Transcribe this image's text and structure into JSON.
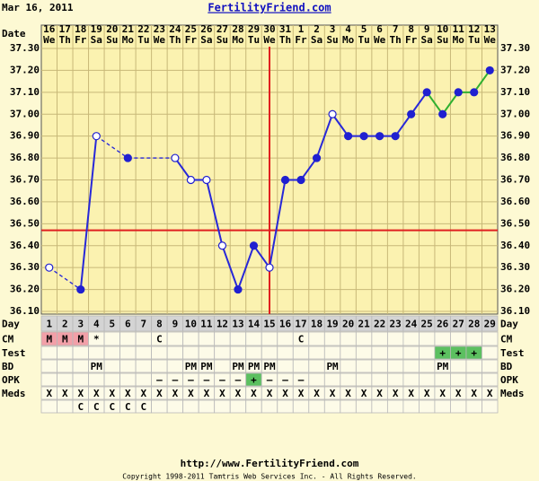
{
  "header": {
    "date": "Mar 16, 2011",
    "site": "FertilityFriend.com"
  },
  "chart_data": {
    "type": "line",
    "date_label": "Date",
    "days": [
      "16",
      "17",
      "18",
      "19",
      "20",
      "21",
      "22",
      "23",
      "24",
      "25",
      "26",
      "27",
      "28",
      "29",
      "30",
      "31",
      "1",
      "2",
      "3",
      "4",
      "5",
      "6",
      "7",
      "8",
      "9",
      "10",
      "11",
      "12",
      "13"
    ],
    "weekdays": [
      "We",
      "Th",
      "Fr",
      "Sa",
      "Su",
      "Mo",
      "Tu",
      "We",
      "Th",
      "Fr",
      "Sa",
      "Su",
      "Mo",
      "Tu",
      "We",
      "Th",
      "Fr",
      "Sa",
      "Su",
      "Mo",
      "Tu",
      "We",
      "Th",
      "Fr",
      "Sa",
      "Su",
      "Mo",
      "Tu",
      "We"
    ],
    "ylim": [
      36.1,
      37.3
    ],
    "yticks": [
      {
        "value": 37.3,
        "label": "37.30"
      },
      {
        "value": 37.2,
        "label": "37.20"
      },
      {
        "value": 37.1,
        "label": "37.10"
      },
      {
        "value": 37.0,
        "label": "37.00"
      },
      {
        "value": 36.9,
        "label": "36.90"
      },
      {
        "value": 36.8,
        "label": "36.80"
      },
      {
        "value": 36.7,
        "label": "36.70"
      },
      {
        "value": 36.6,
        "label": "36.60"
      },
      {
        "value": 36.5,
        "label": "36.50"
      },
      {
        "value": 36.4,
        "label": "36.40"
      },
      {
        "value": 36.3,
        "label": "36.30"
      },
      {
        "value": 36.2,
        "label": "36.20"
      },
      {
        "value": 36.1,
        "label": "36.10"
      }
    ],
    "series": [
      {
        "color": "#2828d8",
        "values": [
          36.3,
          null,
          36.2,
          36.9,
          null,
          36.8,
          null,
          null,
          36.8,
          36.7,
          36.7,
          36.4,
          36.2,
          36.4,
          36.3,
          36.7,
          36.7,
          36.8,
          37.0,
          36.9,
          36.9,
          36.9,
          36.9,
          37.0,
          37.1,
          null,
          null,
          null,
          null
        ]
      },
      {
        "color": "#30b030",
        "values": [
          null,
          null,
          null,
          null,
          null,
          null,
          null,
          null,
          null,
          null,
          null,
          null,
          null,
          null,
          null,
          null,
          null,
          null,
          null,
          null,
          null,
          null,
          null,
          null,
          37.1,
          37.0,
          37.1,
          37.1,
          37.2
        ]
      }
    ],
    "marker_color": "#2020d0",
    "open_marker_days": [
      1,
      4,
      9,
      10,
      11,
      12,
      15,
      19
    ],
    "ovulation_line": {
      "day": 15,
      "color": "#e02020"
    },
    "coverline": {
      "value": 36.47,
      "color": "#e02020"
    },
    "cell_colors": {
      "M": "#f2a0a8",
      "+": "#5cc060"
    },
    "rows": [
      {
        "label": "Day",
        "cells": [
          "1",
          "2",
          "3",
          "4",
          "5",
          "6",
          "7",
          "8",
          "9",
          "10",
          "11",
          "12",
          "13",
          "14",
          "15",
          "16",
          "17",
          "18",
          "19",
          "20",
          "21",
          "22",
          "23",
          "24",
          "25",
          "26",
          "27",
          "28",
          "29"
        ]
      },
      {
        "label": "CM",
        "cells": [
          "M",
          "M",
          "M",
          "*",
          null,
          null,
          null,
          "C",
          null,
          null,
          null,
          null,
          null,
          null,
          null,
          null,
          "C",
          null,
          null,
          null,
          null,
          null,
          null,
          null,
          null,
          null,
          null,
          null,
          null
        ]
      },
      {
        "label": "Test",
        "cells": [
          null,
          null,
          null,
          null,
          null,
          null,
          null,
          null,
          null,
          null,
          null,
          null,
          null,
          null,
          null,
          null,
          null,
          null,
          null,
          null,
          null,
          null,
          null,
          null,
          null,
          "+",
          "+",
          "+",
          null
        ]
      },
      {
        "label": "BD",
        "cells": [
          null,
          null,
          null,
          "PM",
          null,
          null,
          null,
          null,
          null,
          "PM",
          "PM",
          null,
          "PM",
          "PM",
          "PM",
          null,
          null,
          null,
          "PM",
          null,
          null,
          null,
          null,
          null,
          null,
          "PM",
          null,
          null,
          null
        ]
      },
      {
        "label": "OPK",
        "cells": [
          null,
          null,
          null,
          null,
          null,
          null,
          null,
          "–",
          "–",
          "–",
          "–",
          "–",
          "–",
          "+",
          "–",
          "–",
          "–",
          null,
          null,
          null,
          null,
          null,
          null,
          null,
          null,
          null,
          null,
          null,
          null
        ]
      },
      {
        "label": "Meds",
        "cells": [
          "X",
          "X",
          "X",
          "X",
          "X",
          "X",
          "X",
          "X",
          "X",
          "X",
          "X",
          "X",
          "X",
          "X",
          "X",
          "X",
          "X",
          "X",
          "X",
          "X",
          "X",
          "X",
          "X",
          "X",
          "X",
          "X",
          "X",
          "X",
          "X"
        ]
      },
      {
        "label": null,
        "cells": [
          null,
          null,
          "C",
          "C",
          "C",
          "C",
          "C",
          null,
          null,
          null,
          null,
          null,
          null,
          null,
          null,
          null,
          null,
          null,
          null,
          null,
          null,
          null,
          null,
          null,
          null,
          null,
          null,
          null,
          null
        ]
      }
    ]
  },
  "footer": {
    "url": "http://www.FertilityFriend.com",
    "copyright": "Copyright 1998-2011 Tamtris Web Services Inc. - All Rights Reserved."
  }
}
